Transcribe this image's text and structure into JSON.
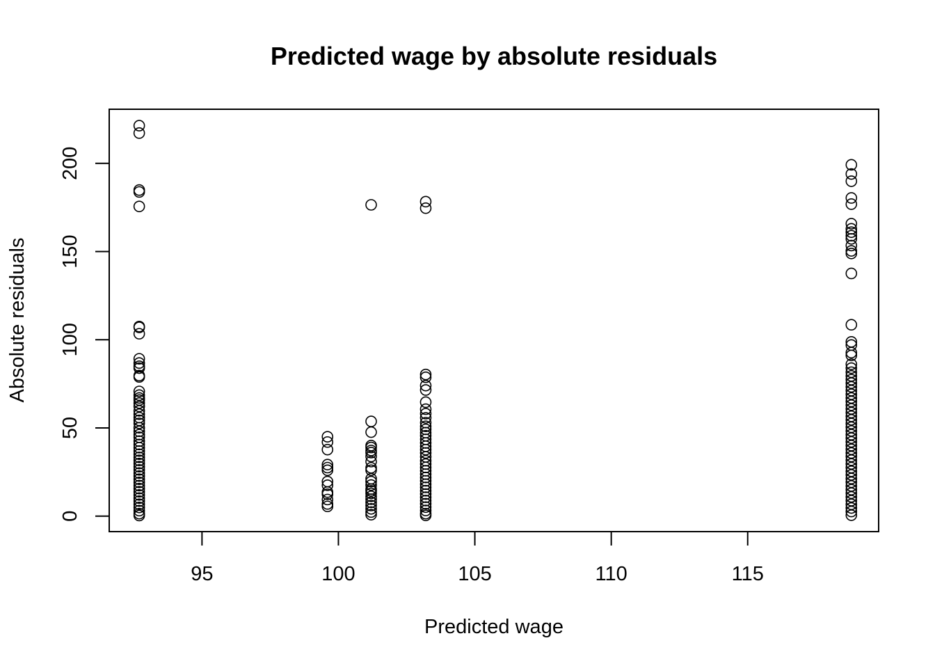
{
  "chart_data": {
    "type": "scatter",
    "title": "Predicted wage by absolute residuals",
    "xlabel": "Predicted wage",
    "ylabel": "Absolute residuals",
    "xlim": [
      91.6,
      119.8
    ],
    "ylim": [
      -8.8,
      230.7
    ],
    "xticks": [
      95,
      100,
      105,
      110,
      115
    ],
    "yticks": [
      0,
      50,
      100,
      150,
      200
    ],
    "grid": false,
    "legend": "none",
    "marker": "open-circle",
    "clusters": [
      {
        "x": 92.7,
        "y": [
          221.4,
          217.2,
          184.9,
          183.8,
          175.6,
          107.5,
          107.0,
          103.4,
          89.2,
          86.8,
          85.0,
          83.9,
          79.7,
          78.9,
          70.7,
          68.6,
          67.0,
          65.8,
          64.1,
          62.2,
          59.7,
          57.8,
          55.9,
          54.3,
          52.6,
          50.1,
          48.1,
          46.2,
          44.7,
          42.5,
          40.6,
          38.8,
          36.9,
          35.1,
          33.3,
          31.6,
          29.8,
          28.0,
          26.2,
          24.4,
          22.7,
          20.9,
          19.1,
          17.3,
          15.6,
          13.8,
          12.0,
          10.2,
          8.5,
          6.7,
          4.9,
          3.1,
          1.4,
          0.3
        ]
      },
      {
        "x": 99.6,
        "y": [
          45.0,
          42.0,
          37.7,
          29.2,
          27.5,
          26.0,
          19.6,
          17.5,
          13.6,
          12.4,
          9.4,
          6.9,
          5.5
        ]
      },
      {
        "x": 101.2,
        "y": [
          176.5,
          53.7,
          47.6,
          40.0,
          38.9,
          37.2,
          36.0,
          33.8,
          30.9,
          27.4,
          26.0,
          21.2,
          19.6,
          17.6,
          15.3,
          14.3,
          12.9,
          11.2,
          9.6,
          7.8,
          6.0,
          4.1,
          2.3,
          0.8
        ]
      },
      {
        "x": 103.2,
        "y": [
          178.3,
          174.6,
          80.3,
          78.7,
          74.0,
          71.5,
          64.6,
          60.6,
          58.1,
          55.7,
          53.0,
          50.9,
          49.2,
          47.3,
          45.6,
          43.5,
          41.5,
          39.6,
          37.7,
          35.8,
          33.6,
          31.4,
          29.5,
          27.6,
          25.7,
          23.8,
          21.9,
          20.0,
          18.1,
          16.3,
          14.4,
          12.5,
          10.7,
          8.8,
          7.0,
          5.1,
          3.2,
          1.4,
          0.4
        ]
      },
      {
        "x": 118.8,
        "y": [
          199.2,
          194.0,
          189.9,
          180.4,
          176.9,
          165.8,
          162.9,
          161.0,
          159.0,
          157.2,
          153.4,
          150.4,
          148.9,
          137.6,
          108.5,
          98.8,
          97.0,
          92.7,
          91.1,
          86.1,
          83.9,
          81.6,
          79.5,
          77.4,
          75.4,
          73.3,
          71.2,
          69.1,
          67.0,
          65.0,
          62.9,
          60.8,
          58.7,
          56.6,
          54.6,
          52.5,
          50.4,
          48.3,
          46.2,
          44.2,
          42.1,
          40.0,
          37.9,
          35.8,
          33.8,
          31.7,
          29.6,
          27.5,
          25.4,
          23.4,
          21.3,
          19.2,
          17.1,
          15.0,
          13.0,
          10.9,
          8.8,
          6.7,
          4.6,
          2.6,
          0.5
        ]
      }
    ]
  }
}
